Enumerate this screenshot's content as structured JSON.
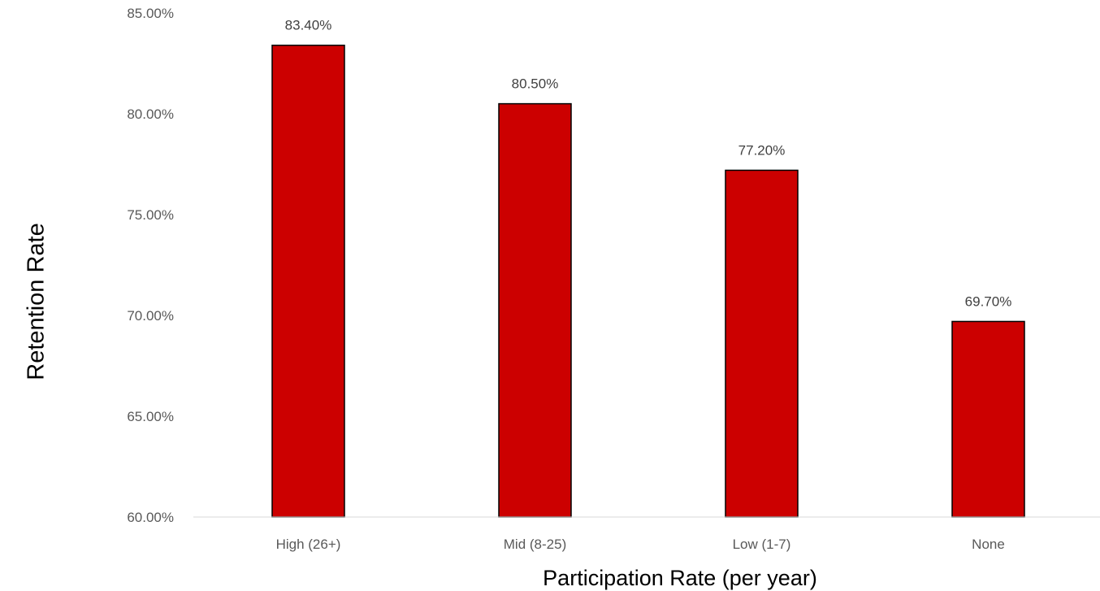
{
  "chart_data": {
    "type": "bar",
    "categories": [
      "High (26+)",
      "Mid (8-25)",
      "Low (1-7)",
      "None"
    ],
    "values": [
      83.4,
      80.5,
      77.2,
      69.7
    ],
    "value_labels": [
      "83.40%",
      "80.50%",
      "77.20%",
      "69.70%"
    ],
    "ylim": [
      60,
      85
    ],
    "ytick_labels": [
      "60.00%",
      "65.00%",
      "70.00%",
      "75.00%",
      "80.00%",
      "85.00%"
    ],
    "xlabel": "Participation Rate (per year)",
    "ylabel": "Retention Rate",
    "grid": false,
    "legend": "none",
    "bar_color": "#cc0000",
    "bar_border_color": "#000000"
  }
}
